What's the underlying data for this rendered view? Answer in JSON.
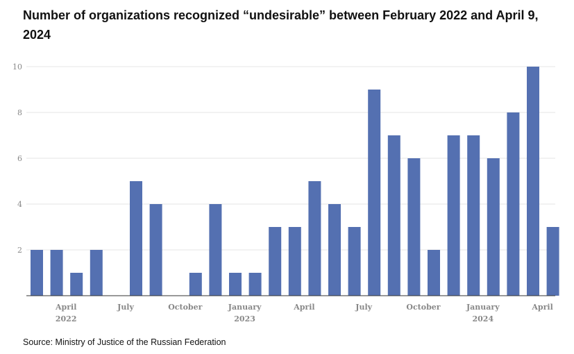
{
  "title": "Number of organizations recognized “undesirable” between February 2022 and April 9, 2024",
  "source": "Source: Ministry of Justice of the Russian Federation",
  "colors": {
    "bar": "#5470b1",
    "grid": "#e4e4e4",
    "axis": "#333333"
  },
  "chart_data": {
    "type": "bar",
    "categories": [
      "Feb 2022",
      "Mar 2022",
      "Apr 2022",
      "May 2022",
      "Jun 2022",
      "Jul 2022",
      "Aug 2022",
      "Sep 2022",
      "Oct 2022",
      "Nov 2022",
      "Dec 2022",
      "Jan 2023",
      "Feb 2023",
      "Mar 2023",
      "Apr 2023",
      "May 2023",
      "Jun 2023",
      "Jul 2023",
      "Aug 2023",
      "Sep 2023",
      "Oct 2023",
      "Nov 2023",
      "Dec 2023",
      "Jan 2024",
      "Feb 2024",
      "Mar 2024",
      "Apr 2024"
    ],
    "values": [
      2,
      2,
      1,
      2,
      0,
      5,
      4,
      0,
      1,
      4,
      1,
      1,
      3,
      3,
      5,
      4,
      3,
      9,
      7,
      6,
      2,
      7,
      7,
      6,
      8,
      10,
      3
    ],
    "ylim": [
      0,
      10
    ],
    "yticks": [
      "2",
      "4",
      "6",
      "8",
      "10"
    ],
    "xticks": [
      {
        "index": 2,
        "label": "April",
        "year": "2022"
      },
      {
        "index": 5,
        "label": "July",
        "year": ""
      },
      {
        "index": 8,
        "label": "October",
        "year": ""
      },
      {
        "index": 11,
        "label": "January",
        "year": "2023"
      },
      {
        "index": 14,
        "label": "April",
        "year": ""
      },
      {
        "index": 17,
        "label": "July",
        "year": ""
      },
      {
        "index": 20,
        "label": "October",
        "year": ""
      },
      {
        "index": 23,
        "label": "January",
        "year": "2024"
      },
      {
        "index": 26,
        "label": "April",
        "year": ""
      }
    ],
    "grid": true
  }
}
